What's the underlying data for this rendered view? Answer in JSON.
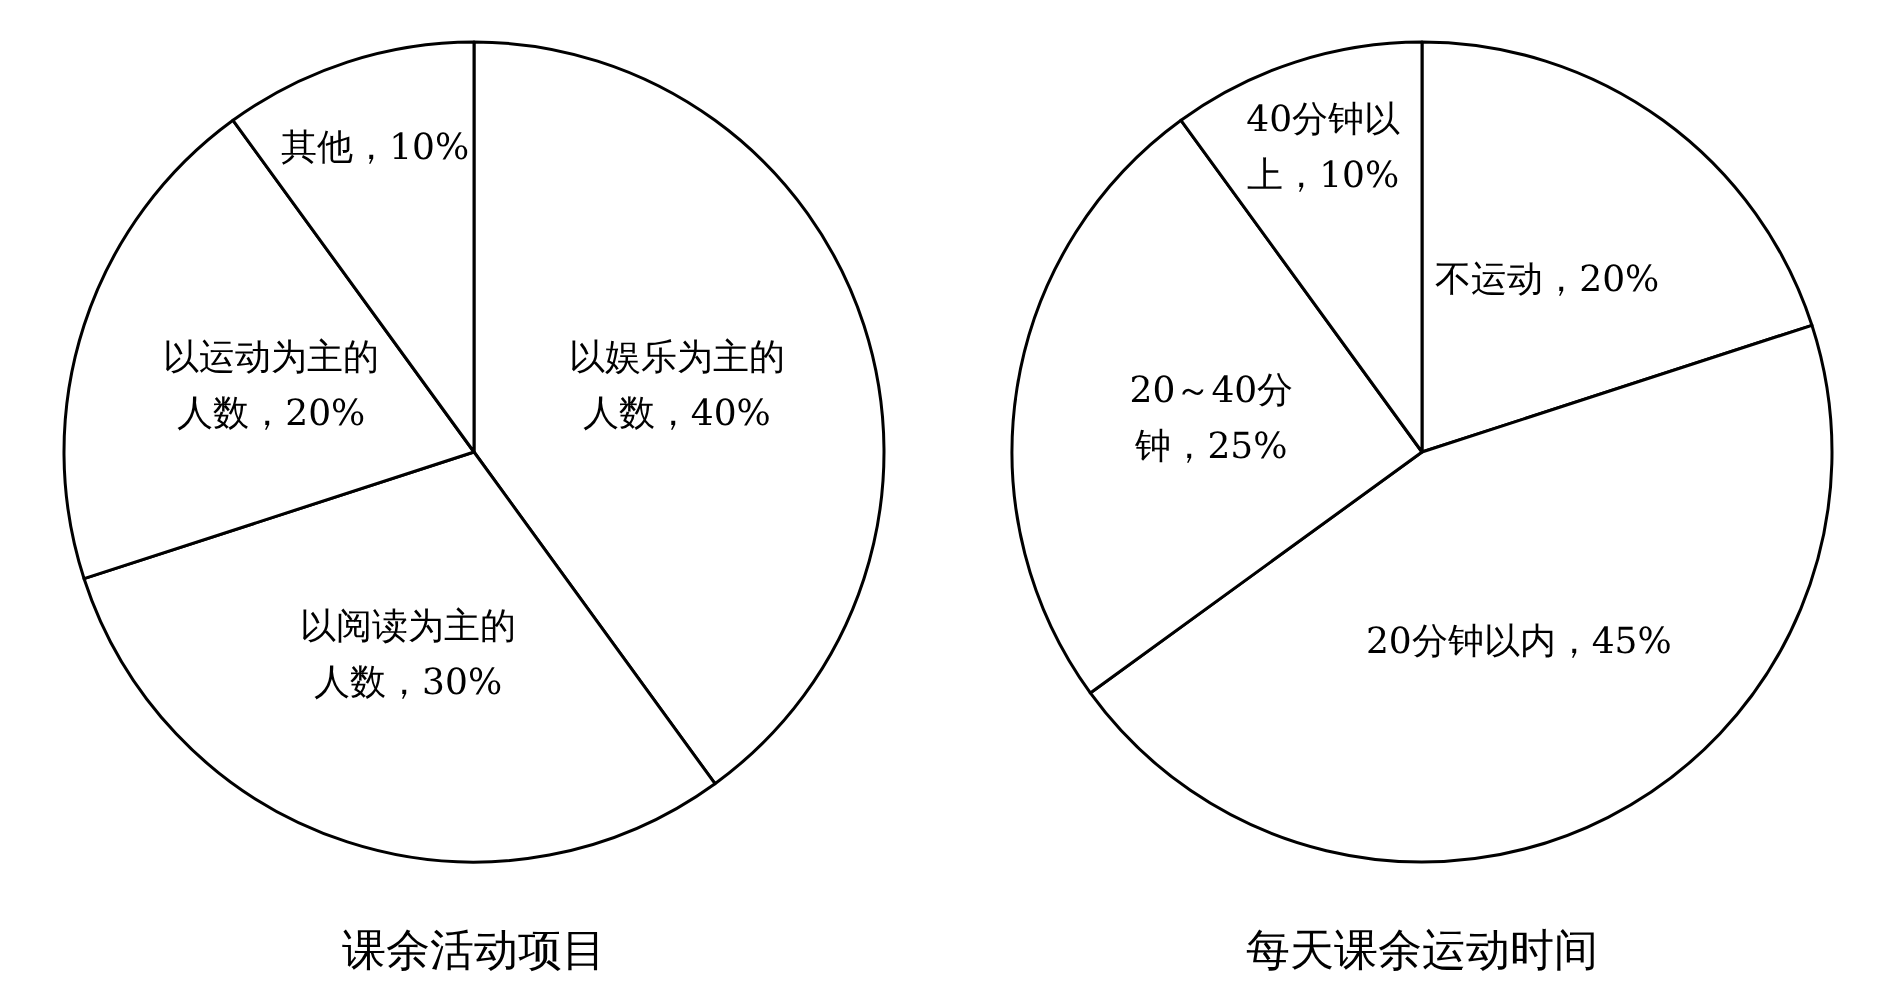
{
  "chart_data": [
    {
      "type": "pie",
      "title": "课余活动项目",
      "categories": [
        "以娱乐为主的人数",
        "以阅读为主的人数",
        "以运动为主的人数",
        "其他"
      ],
      "values": [
        40,
        30,
        20,
        10
      ],
      "value_labels": [
        "40%",
        "30%",
        "20%",
        "10%"
      ],
      "colors": [
        "#ffffff",
        "#ffffff",
        "#ffffff",
        "#ffffff"
      ],
      "legend": false
    },
    {
      "type": "pie",
      "title": "每天课余运动时间",
      "categories": [
        "不运动",
        "20分钟以内",
        "20～40分钟",
        "40分钟以上"
      ],
      "values": [
        20,
        45,
        25,
        10
      ],
      "value_labels": [
        "20%",
        "45%",
        "25%",
        "10%"
      ],
      "colors": [
        "#ffffff",
        "#ffffff",
        "#ffffff",
        "#ffffff"
      ],
      "legend": false
    }
  ]
}
